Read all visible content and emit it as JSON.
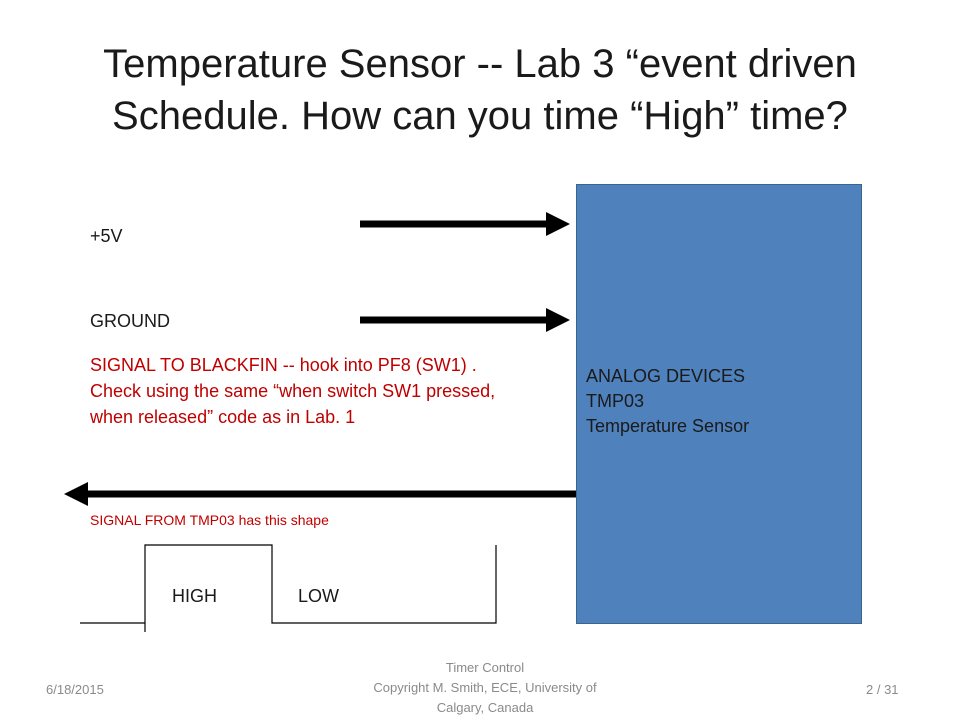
{
  "slide": {
    "title": "Temperature Sensor  -- Lab 3 “event driven Schedule.  How can you time “High” time?",
    "label_5v": "+5V",
    "label_ground": "GROUND",
    "signal_text": "SIGNAL TO BLACKFIN  -- hook into PF8 (SW1) . Check using the same “when switch SW1 pressed, when released” code as in Lab. 1",
    "shape_caption": "SIGNAL FROM TMP03 has this shape",
    "waveform": {
      "high_label": "HIGH",
      "low_label": "LOW"
    },
    "sensor_box": {
      "line1": "ANALOG DEVICES",
      "line2": "TMP03",
      "line3": "Temperature Sensor",
      "fill_color": "#4f81bd"
    },
    "accent_color": "#c00000"
  },
  "footer": {
    "date": "6/18/2015",
    "center": "Timer Control\nCopyright M. Smith, ECE, University of Calgary, Canada",
    "page": "2 / 31"
  }
}
